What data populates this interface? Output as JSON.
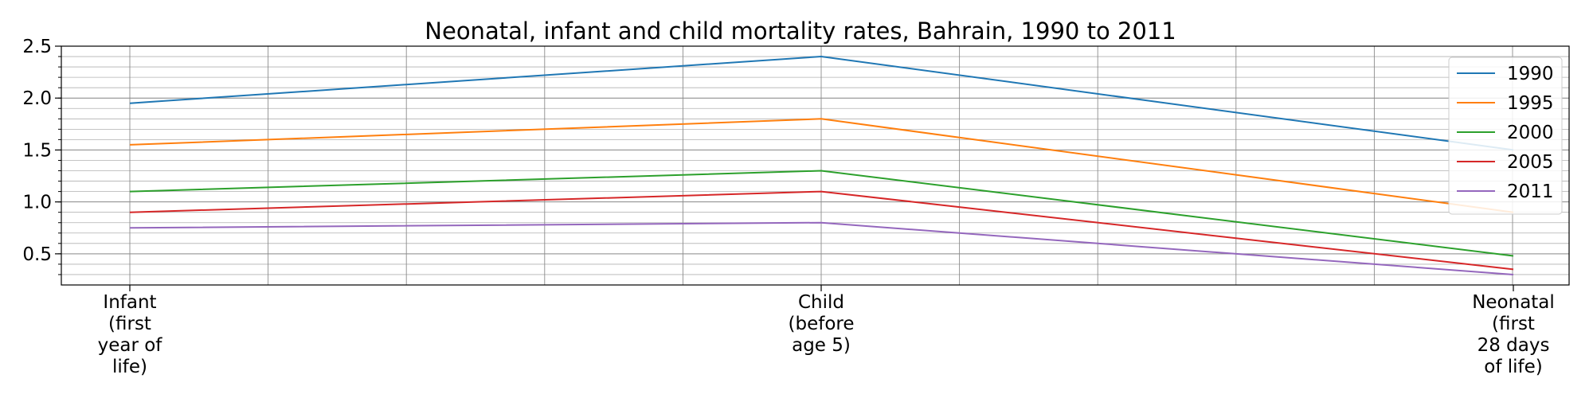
{
  "chart_data": {
    "type": "line",
    "title": "Neonatal, infant and child mortality rates, Bahrain, 1990 to 2011",
    "xlabel": "",
    "ylabel": "",
    "categories": [
      [
        "Infant",
        "(first",
        "year of",
        "life)"
      ],
      [
        "Child",
        "(before",
        "age 5)"
      ],
      [
        "Neonatal",
        "(first",
        "28 days",
        "of life)"
      ]
    ],
    "ylim": [
      0.2,
      2.5
    ],
    "yticks": [
      "0.5",
      "1.0",
      "1.5",
      "2.0",
      "2.5"
    ],
    "grid": true,
    "legend_position": "top-right",
    "series": [
      {
        "name": "1990",
        "color": "#1f77b4",
        "values": [
          1.95,
          2.4,
          1.5
        ]
      },
      {
        "name": "1995",
        "color": "#ff7f0e",
        "values": [
          1.55,
          1.8,
          0.9
        ]
      },
      {
        "name": "2000",
        "color": "#2ca02c",
        "values": [
          1.1,
          1.3,
          0.48
        ]
      },
      {
        "name": "2005",
        "color": "#d62728",
        "values": [
          0.9,
          1.1,
          0.35
        ]
      },
      {
        "name": "2011",
        "color": "#9467bd",
        "values": [
          0.75,
          0.8,
          0.3
        ]
      }
    ]
  }
}
